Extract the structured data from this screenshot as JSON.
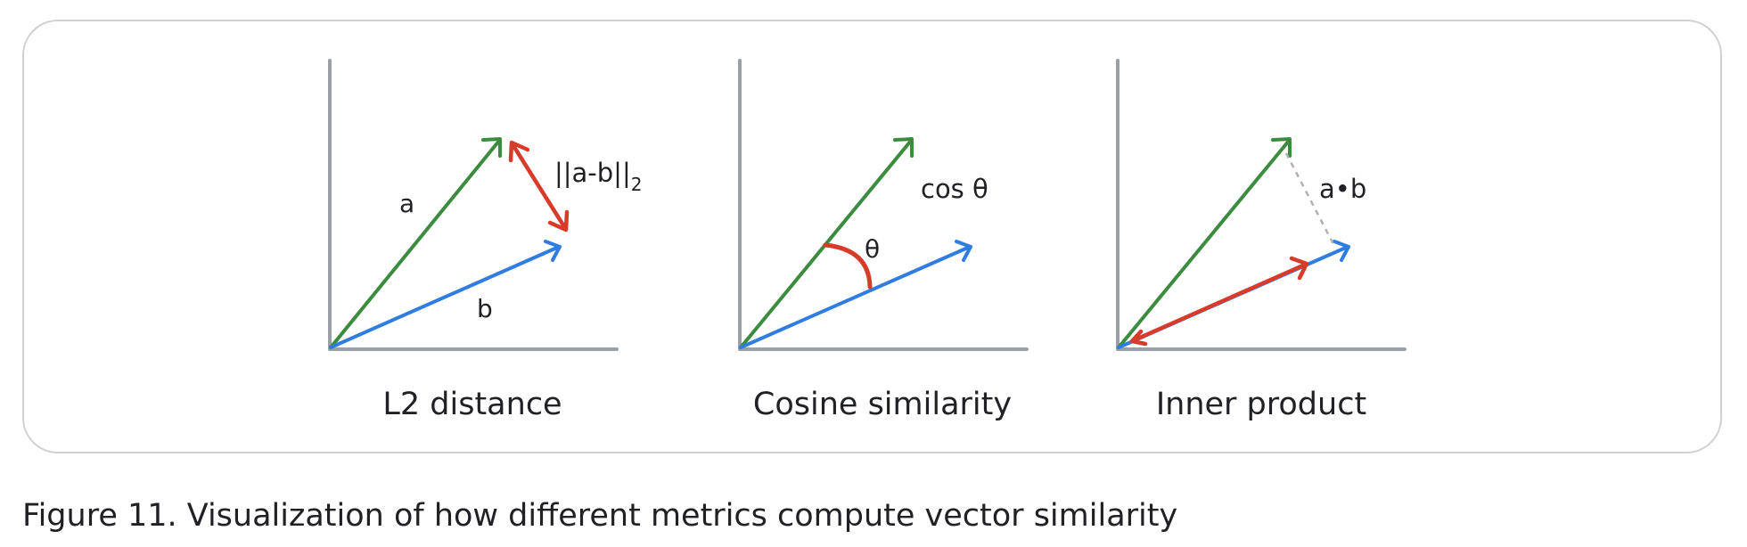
{
  "figure": {
    "caption": "Figure 11. Visualization of how different metrics compute vector similarity"
  },
  "colors": {
    "axis": "#9aa0a6",
    "vector_a": "#3c8c3f",
    "vector_b": "#2f7de1",
    "metric": "#d93b2b",
    "projection": "#b0b0b0",
    "text": "#202124"
  },
  "panels": [
    {
      "title": "L2 distance",
      "vector_a_label": "a",
      "vector_b_label": "b",
      "metric_label": "||a-b||",
      "metric_subscript": "2"
    },
    {
      "title": "Cosine similarity",
      "metric_label": "cos θ",
      "angle_label": "θ"
    },
    {
      "title": "Inner product",
      "metric_label": "a•b"
    }
  ]
}
